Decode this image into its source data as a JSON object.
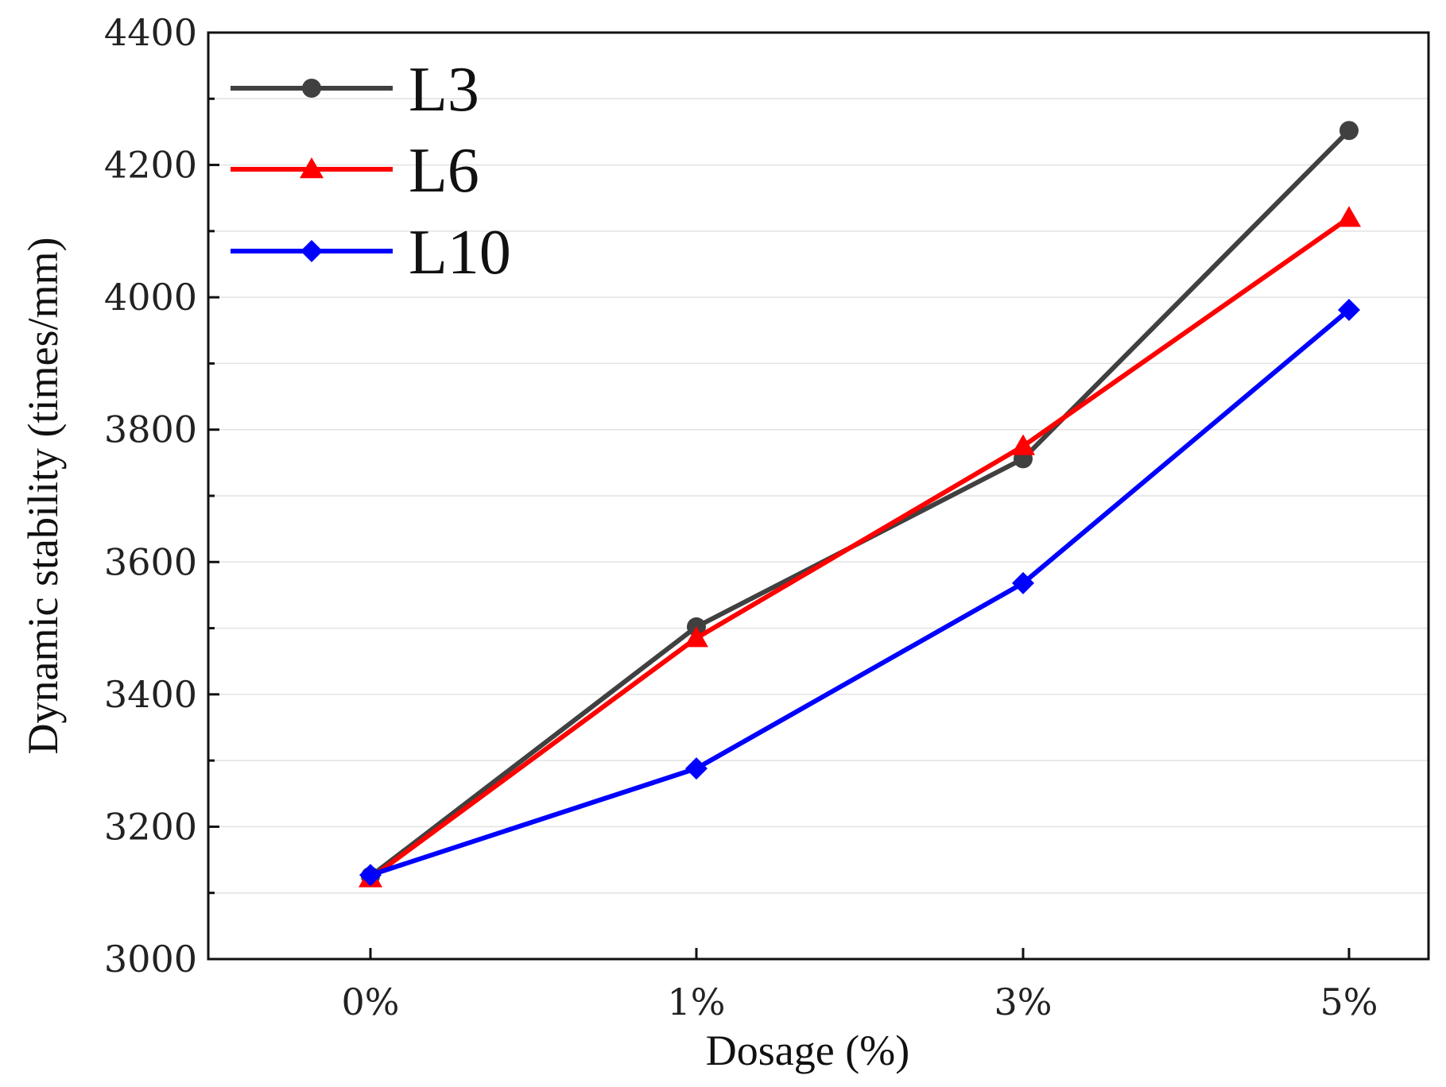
{
  "chart_data": {
    "type": "line",
    "title": "",
    "xlabel": "Dosage (%)",
    "ylabel": "Dynamic stability (times/mm)",
    "categories": [
      "0%",
      "1%",
      "3%",
      "5%"
    ],
    "ylim": [
      3000,
      4400
    ],
    "yticks": [
      3000,
      3200,
      3400,
      3600,
      3800,
      4000,
      4200,
      4400
    ],
    "grid": true,
    "legend_position": "top-left",
    "series": [
      {
        "name": "L3",
        "color": "#404040",
        "marker": "circle",
        "values": [
          3125,
          3502,
          3756,
          4252
        ]
      },
      {
        "name": "L6",
        "color": "#ff0000",
        "marker": "triangle",
        "values": [
          3122,
          3485,
          3775,
          4120
        ]
      },
      {
        "name": "L10",
        "color": "#0000ff",
        "marker": "diamond",
        "values": [
          3127,
          3288,
          3568,
          3981
        ]
      }
    ]
  }
}
